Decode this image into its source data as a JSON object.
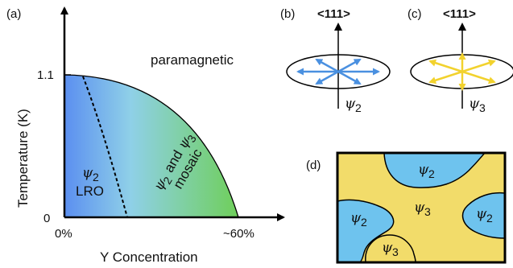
{
  "panels": {
    "a": {
      "label": "(a)",
      "ylabel": "Temperature (K)",
      "xlabel": "Y Concentration",
      "ytick_top": "1.1",
      "ytick_zero": "0",
      "xtick_left": "0%",
      "xtick_right": "~60%",
      "region_paramagnetic": "paramagnetic",
      "region_lro_psi": "ψ",
      "region_lro_sub": "2",
      "region_lro": "LRO",
      "region_mosaic_psi_a": "ψ",
      "region_mosaic_sub_a": "2",
      "region_mosaic_and": "and",
      "region_mosaic_psi_b": "ψ",
      "region_mosaic_sub_b": "3",
      "region_mosaic_word": "mosaic",
      "colors": {
        "lro": "#5b8ff0",
        "mosaic": "#6fcf5a",
        "boundary": "#000000"
      }
    },
    "b": {
      "label": "(b)",
      "direction": "<111>",
      "psi": "ψ",
      "sub": "2",
      "color": "#4a90e0"
    },
    "c": {
      "label": "(c)",
      "direction": "<111>",
      "psi": "ψ",
      "sub": "3",
      "color": "#f2d22e"
    },
    "d": {
      "label": "(d)",
      "colors": {
        "psi2": "#6ec3ee",
        "psi3": "#f2dc6a"
      },
      "domains": [
        {
          "psi": "ψ",
          "sub": "2"
        },
        {
          "psi": "ψ",
          "sub": "3"
        },
        {
          "psi": "ψ",
          "sub": "2"
        },
        {
          "psi": "ψ",
          "sub": "2"
        },
        {
          "psi": "ψ",
          "sub": "3"
        }
      ]
    }
  }
}
